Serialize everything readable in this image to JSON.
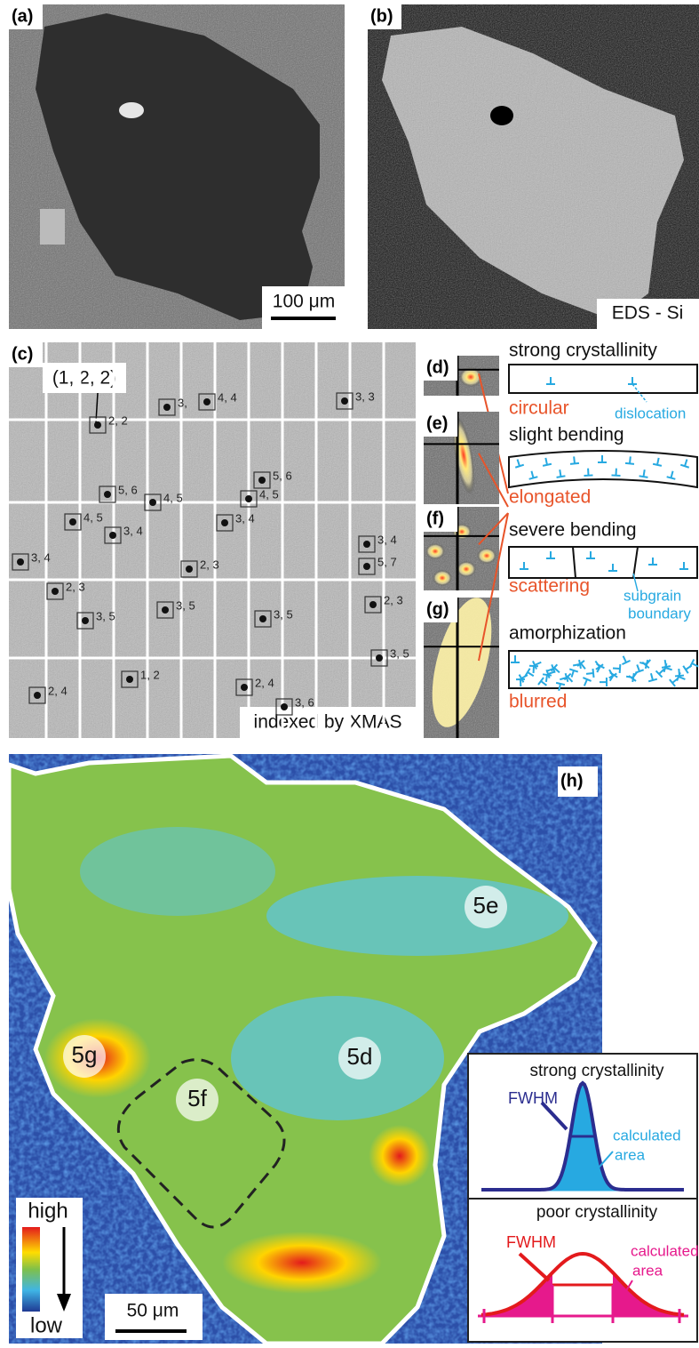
{
  "panels": {
    "a": {
      "label": "(a)",
      "scale_bar": "100 μm"
    },
    "b": {
      "label": "(b)",
      "caption": "EDS - Si"
    },
    "c": {
      "label": "(c)",
      "callout": "(1, 2, 2)",
      "caption": "indexed by XMAS",
      "indices": [
        "2, 2",
        "3,",
        "4, 4",
        "3, 3",
        "5, 6",
        "4, 5",
        "5, 6",
        "4, 5",
        "4, 5",
        "3, 4",
        "3, 4",
        "3, 4",
        "3, 4",
        "2, 3",
        "5, 7",
        "2, 3",
        "2, 3",
        "3, 5",
        "3, 5",
        "3, 5",
        "3, 5",
        "1, 2",
        "2, 4",
        "2, 4",
        "3, 6"
      ]
    },
    "d": {
      "label": "(d)",
      "shape": "circular"
    },
    "e": {
      "label": "(e)",
      "shape": "elongated"
    },
    "f": {
      "label": "(f)",
      "shape": "scattering"
    },
    "g": {
      "label": "(g)",
      "shape": "blurred"
    },
    "schematics": [
      {
        "title": "strong crystallinity",
        "note": "dislocation"
      },
      {
        "title": "slight bending"
      },
      {
        "title": "severe bending",
        "note": [
          "subgrain",
          "boundary"
        ]
      },
      {
        "title": "amorphization"
      }
    ],
    "h": {
      "label": "(h)",
      "regions": [
        "5e",
        "5d",
        "5g",
        "5f"
      ],
      "legend_high": "high",
      "legend_low": "low",
      "scale_bar": "50 μm",
      "inset": {
        "strong": {
          "title": "strong crystallinity",
          "fwhm": "FWHM",
          "area": [
            "calculated",
            "area"
          ]
        },
        "poor": {
          "title": "poor crystallinity",
          "fwhm": "FWHM",
          "area": [
            "calculated",
            "area"
          ]
        }
      }
    }
  }
}
